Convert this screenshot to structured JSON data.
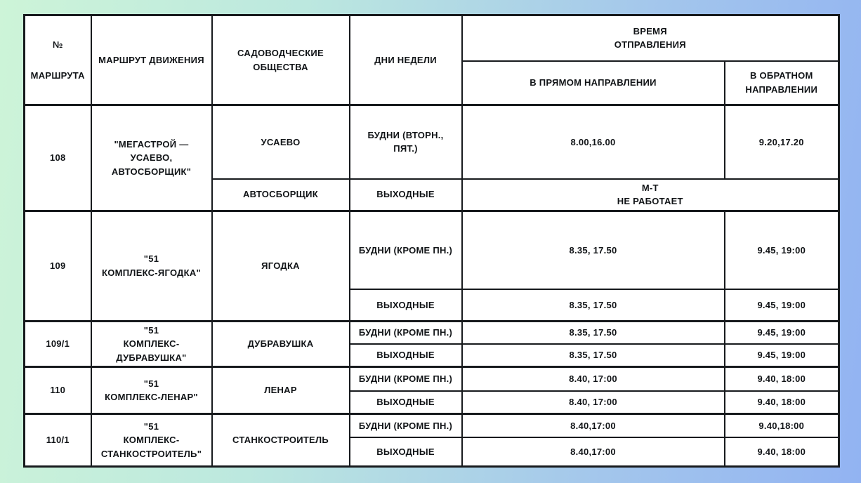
{
  "page": {
    "bg_gradient_left": "#cdf4d8",
    "bg_gradient_right": "#92b3f2",
    "table_border_color": "#171a1d",
    "cell_background": "#ffffff",
    "text_color": "#111417"
  },
  "header": {
    "route_number_symbol": "№",
    "route_number_word": "МАРШРУТА",
    "route_name": "МАРШРУТ ДВИЖЕНИЯ",
    "societies": "САДОВОДЧЕСКИЕ\nОБЩЕСТВА",
    "days": "ДНИ НЕДЕЛИ",
    "departure_time": "ВРЕМЯ\nОТПРАВЛЕНИЯ",
    "forward": "В ПРЯМОМ НАПРАВЛЕНИИ",
    "backward": "В ОБРАТНОМ\nНАПРАВЛЕНИИ"
  },
  "groups": [
    {
      "route_no": "108",
      "route_name": "\"МЕГАСТРОЙ —\nУСАЕВО,\nАВТОСБОРЩИК\"",
      "rows": [
        {
          "society": "УСАЕВО",
          "days": "БУДНИ (ВТОРН.,\nПЯТ.)",
          "forward": "8.00,16.00",
          "backward": "9.20,17.20"
        },
        {
          "society": "АВТОСБОРЩИК",
          "days": "ВЫХОДНЫЕ",
          "combined": "М-Т\nНЕ РАБОТАЕТ"
        }
      ]
    },
    {
      "route_no": "109",
      "route_name": "\"51\nКОМПЛЕКС-ЯГОДКА\"",
      "society": "ЯГОДКА",
      "rows": [
        {
          "days": "БУДНИ (КРОМЕ ПН.)",
          "forward": "8.35, 17.50",
          "backward": "9.45, 19:00"
        },
        {
          "days": "ВЫХОДНЫЕ",
          "forward": "8.35, 17.50",
          "backward": "9.45, 19:00"
        }
      ]
    },
    {
      "route_no": "109/1",
      "route_name": "\"51\nКОМПЛЕКС-\nДУБРАВУШКА\"",
      "society": "ДУБРАВУШКА",
      "rows": [
        {
          "days": "БУДНИ (КРОМЕ ПН.)",
          "forward": "8.35, 17.50",
          "backward": "9.45, 19:00"
        },
        {
          "days": "ВЫХОДНЫЕ",
          "forward": "8.35, 17.50",
          "backward": "9.45, 19:00"
        }
      ]
    },
    {
      "route_no": "110",
      "route_name": "\"51\nКОМПЛЕКС-ЛЕНАР\"",
      "society": "ЛЕНАР",
      "rows": [
        {
          "days": "БУДНИ (КРОМЕ ПН.)",
          "forward": "8.40, 17:00",
          "backward": "9.40, 18:00"
        },
        {
          "days": "ВЫХОДНЫЕ",
          "forward": "8.40, 17:00",
          "backward": "9.40, 18:00"
        }
      ]
    },
    {
      "route_no": "110/1",
      "route_name": "\"51\nКОМПЛЕКС-\nСТАНКОСТРОИТЕЛЬ\"",
      "society": "СТАНКОСТРОИТЕЛЬ",
      "rows": [
        {
          "days": "БУДНИ (КРОМЕ ПН.)",
          "forward": "8.40,17:00",
          "backward": "9.40,18:00"
        },
        {
          "days": "ВЫХОДНЫЕ",
          "forward": "8.40,17:00",
          "backward": "9.40, 18:00"
        }
      ]
    }
  ]
}
